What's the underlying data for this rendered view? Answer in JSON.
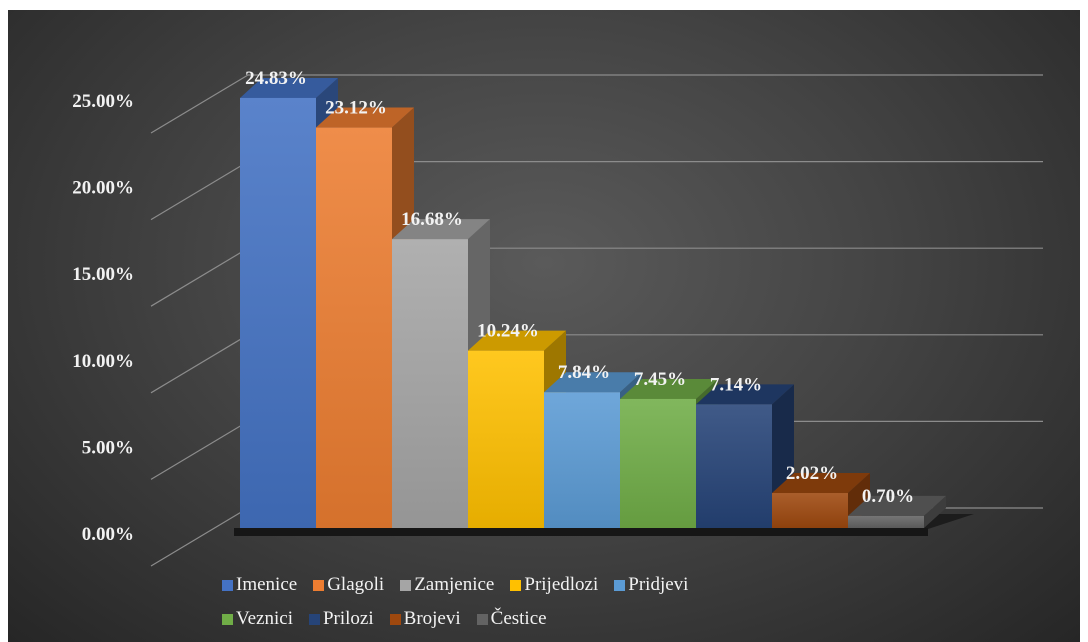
{
  "chart_data": {
    "type": "bar",
    "title": "",
    "xlabel": "",
    "ylabel": "",
    "categories": [
      "Imenice",
      "Glagoli",
      "Zamjenice",
      "Prijedlozi",
      "Pridjevi",
      "Veznici",
      "Prilozi",
      "Brojevi",
      "Čestice"
    ],
    "values": [
      24.83,
      23.12,
      16.68,
      10.24,
      7.84,
      7.45,
      7.14,
      2.02,
      0.7
    ],
    "value_labels": [
      "24.83%",
      "23.12%",
      "16.68%",
      "10.24%",
      "7.84%",
      "7.45%",
      "7.14%",
      "2.02%",
      "0.70%"
    ],
    "colors": [
      "#4472c4",
      "#ed7d31",
      "#a5a5a5",
      "#ffc000",
      "#5b9bd5",
      "#70ad47",
      "#264478",
      "#9e480e",
      "#636363"
    ],
    "ylim": [
      0,
      25
    ],
    "yticks": [
      "0.00%",
      "5.00%",
      "10.00%",
      "15.00%",
      "20.00%",
      "25.00%"
    ],
    "grid": true,
    "legend_position": "bottom",
    "style": "3d-column",
    "background": "#3f3f3f"
  }
}
